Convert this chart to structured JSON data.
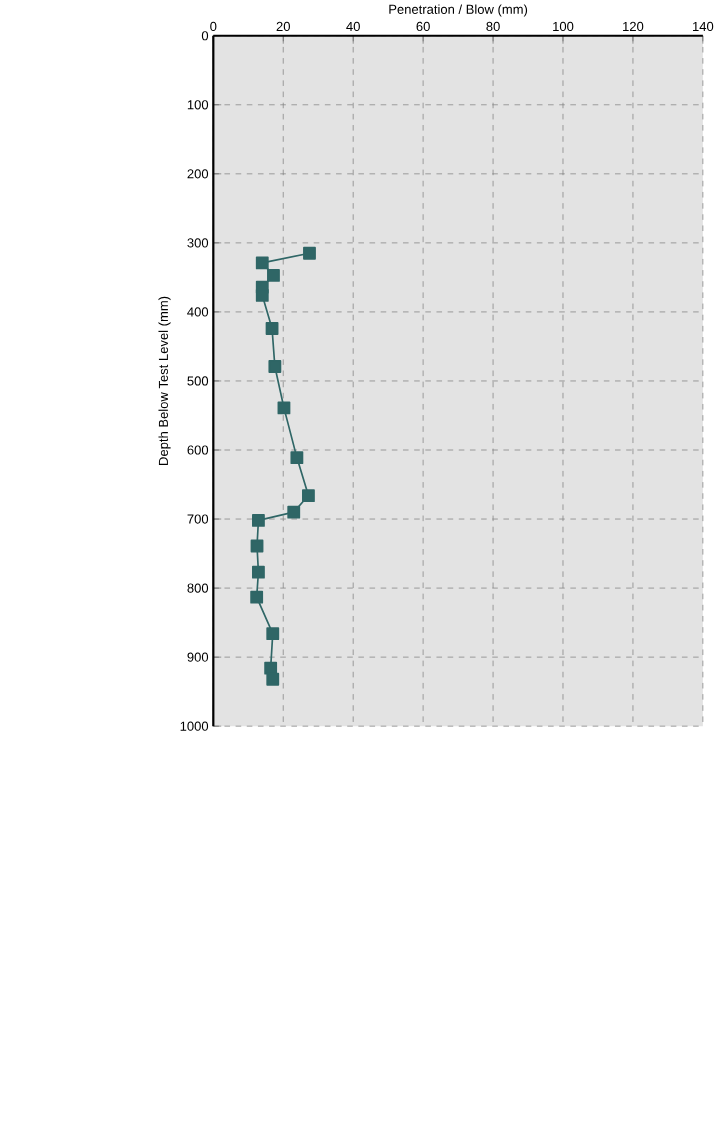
{
  "chart_data": {
    "type": "line",
    "xlabel": "Penetration / Blow (mm)",
    "ylabel": "Depth Below Test Level (mm)",
    "x": [
      27.5,
      14.0,
      17.2,
      14.0,
      14.0,
      16.8,
      17.6,
      20.2,
      23.9,
      27.2,
      23.0,
      12.9,
      12.5,
      12.9,
      12.4,
      17.0,
      16.4,
      17.0
    ],
    "series": [
      {
        "color": "#2f6666",
        "values": [
          315,
          329,
          347,
          364,
          376,
          424,
          479,
          539,
          611,
          666,
          690,
          702,
          739,
          777,
          813,
          866,
          916,
          932
        ]
      }
    ],
    "xlim": [
      0,
      140
    ],
    "xticks": [
      0,
      20,
      40,
      60,
      80,
      100,
      120,
      140
    ],
    "ylim": [
      1000,
      0
    ],
    "yticks": [
      0,
      100,
      200,
      300,
      400,
      500,
      600,
      700,
      800,
      900,
      1000
    ],
    "grid": true,
    "marker": "square",
    "line_style": "solid"
  }
}
